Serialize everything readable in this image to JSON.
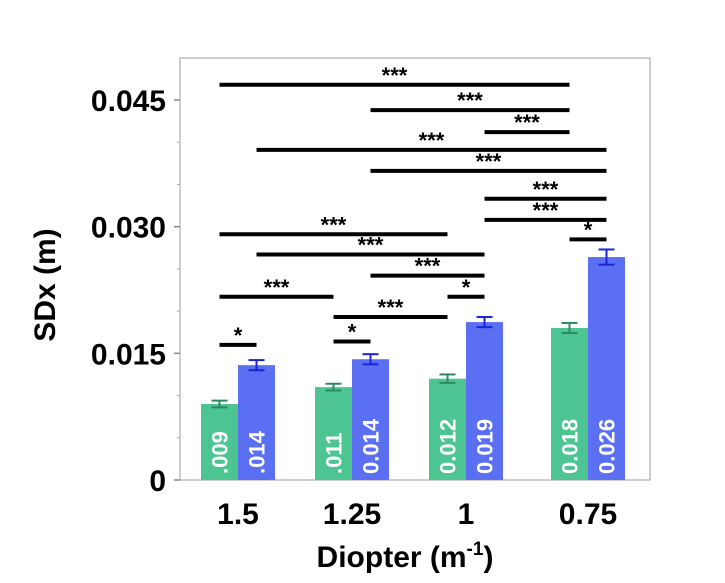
{
  "chart_data": {
    "type": "bar",
    "categories": [
      "1.5",
      "1.25",
      "1",
      "0.75"
    ],
    "series": [
      {
        "color": "#4cc592",
        "values": [
          0.009,
          0.011,
          0.012,
          0.018
        ],
        "errors": [
          0.0004,
          0.0004,
          0.0005,
          0.0006
        ],
        "labels": [
          ".009",
          ".011",
          "0.012",
          "0.018"
        ]
      },
      {
        "color": "#5b6ff2",
        "values": [
          0.0136,
          0.0143,
          0.0187,
          0.0264
        ],
        "errors": [
          0.0006,
          0.0006,
          0.0006,
          0.0009
        ],
        "labels": [
          ".014",
          "0.014",
          "0.019",
          "0.026"
        ]
      }
    ],
    "xlabel": "Diopter (m",
    "xlabel_sup": "-1",
    "xlabel_close": ")",
    "ylabel": "SDx (m)",
    "ylim": [
      0,
      0.0505
    ],
    "yticks": [
      0,
      0.015,
      0.03,
      0.045
    ],
    "ytick_labels": [
      "0",
      "0.015",
      "0.030",
      "0.045"
    ],
    "significance": [
      {
        "from": 0,
        "to": 3,
        "from_series": 0,
        "to_series": 0,
        "level": 0.0468,
        "text": "***"
      },
      {
        "from": 1,
        "to": 3,
        "from_series": 1,
        "to_series": 0,
        "level": 0.0438,
        "text": "***"
      },
      {
        "from": 2,
        "to": 3,
        "from_series": 1,
        "to_series": 0,
        "level": 0.0412,
        "text": "***"
      },
      {
        "from": 0,
        "to": 3,
        "from_series": 1,
        "to_series": 1,
        "level": 0.0391,
        "text": "***"
      },
      {
        "from": 1,
        "to": 3,
        "from_series": 1,
        "to_series": 1,
        "level": 0.0366,
        "text": "***"
      },
      {
        "from": 2,
        "to": 3,
        "from_series": 1,
        "to_series": 1,
        "level": 0.0333,
        "text": "***"
      },
      {
        "from": 2,
        "to": 3,
        "from_series": 1,
        "to_series": 1,
        "level": 0.0308,
        "text": "***"
      },
      {
        "from": 3,
        "to": 3,
        "from_series": 0,
        "to_series": 1,
        "level": 0.0285,
        "text": "*"
      },
      {
        "from": 0,
        "to": 2,
        "from_series": 0,
        "to_series": 0,
        "level": 0.0291,
        "text": "***"
      },
      {
        "from": 0,
        "to": 2,
        "from_series": 1,
        "to_series": 1,
        "level": 0.0267,
        "text": "***"
      },
      {
        "from": 1,
        "to": 2,
        "from_series": 1,
        "to_series": 1,
        "level": 0.0242,
        "text": "***"
      },
      {
        "from": 2,
        "to": 2,
        "from_series": 0,
        "to_series": 1,
        "level": 0.0217,
        "text": "*"
      },
      {
        "from": 0,
        "to": 1,
        "from_series": 0,
        "to_series": 0,
        "level": 0.0217,
        "text": "***"
      },
      {
        "from": 1,
        "to": 2,
        "from_series": 0,
        "to_series": 0,
        "level": 0.0193,
        "text": "***"
      },
      {
        "from": 0,
        "to": 0,
        "from_series": 0,
        "to_series": 1,
        "level": 0.016,
        "text": "*"
      },
      {
        "from": 1,
        "to": 1,
        "from_series": 0,
        "to_series": 1,
        "level": 0.0164,
        "text": "*"
      }
    ]
  }
}
